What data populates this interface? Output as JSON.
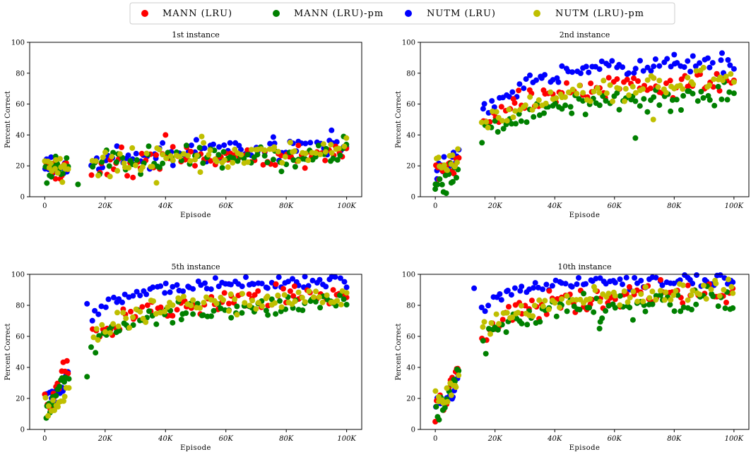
{
  "figure": {
    "legend_placement": "top-center",
    "x_tick_labels": [
      "0",
      "20K",
      "40K",
      "60K",
      "80K",
      "100K"
    ],
    "y_tick_labels": [
      "0",
      "20",
      "40",
      "60",
      "80",
      "100"
    ]
  },
  "chart_data": [
    {
      "type": "scatter",
      "title": "1st instance",
      "xlabel": "Episode",
      "ylabel": "Percent Correct",
      "xlim": [
        -5000,
        105000
      ],
      "ylim": [
        0,
        100
      ],
      "grid": false,
      "legend": "top-center (shared)",
      "series": [
        {
          "name": "MANN (LRU)",
          "color": "#ff0000",
          "trend": {
            "x": [
              0,
              5000,
              10000,
              20000,
              30000,
              40000,
              60000,
              80000,
              100000
            ],
            "y": [
              20,
              19,
              17,
              20,
              23,
              24,
              26,
              27,
              27
            ]
          },
          "jitter": 6,
          "count": 90,
          "outliers": [
            [
              40000,
              40
            ],
            [
              47000,
              32
            ]
          ]
        },
        {
          "name": "MANN (LRU)-pm",
          "color": "#008000",
          "trend": {
            "x": [
              0,
              5000,
              10000,
              20000,
              30000,
              40000,
              60000,
              80000,
              100000
            ],
            "y": [
              20,
              18,
              16,
              20,
              23,
              24,
              26,
              27,
              28
            ]
          },
          "jitter": 6,
          "count": 90,
          "outliers": [
            [
              11000,
              8
            ],
            [
              99000,
              39
            ]
          ]
        },
        {
          "name": "NUTM (LRU)",
          "color": "#0000ff",
          "trend": {
            "x": [
              0,
              5000,
              10000,
              20000,
              30000,
              40000,
              60000,
              80000,
              100000
            ],
            "y": [
              21,
              20,
              20,
              23,
              26,
              28,
              30,
              32,
              33
            ]
          },
          "jitter": 5,
          "count": 90,
          "outliers": [
            [
              95000,
              43
            ]
          ]
        },
        {
          "name": "NUTM (LRU)-pm",
          "color": "#bfbf00",
          "trend": {
            "x": [
              0,
              5000,
              10000,
              20000,
              30000,
              40000,
              60000,
              80000,
              100000
            ],
            "y": [
              21,
              19,
              17,
              21,
              25,
              25,
              27,
              28,
              29
            ]
          },
          "jitter": 6,
          "count": 90,
          "outliers": [
            [
              37000,
              9
            ],
            [
              52000,
              39
            ]
          ]
        }
      ]
    },
    {
      "type": "scatter",
      "title": "2nd instance",
      "xlabel": "Episode",
      "ylabel": "Percent Correct",
      "xlim": [
        -5000,
        105000
      ],
      "ylim": [
        0,
        100
      ],
      "grid": false,
      "legend": "top-center (shared)",
      "series": [
        {
          "name": "MANN (LRU)",
          "color": "#ff0000",
          "trend": {
            "x": [
              0,
              3000,
              6000,
              10000,
              15000,
              20000,
              30000,
              40000,
              50000,
              60000,
              80000,
              100000
            ],
            "y": [
              17,
              18,
              22,
              35,
              46,
              54,
              62,
              66,
              68,
              71,
              73,
              75
            ]
          },
          "jitter": 5,
          "count": 90,
          "outliers": []
        },
        {
          "name": "MANN (LRU)-pm",
          "color": "#008000",
          "trend": {
            "x": [
              0,
              3000,
              6000,
              10000,
              15000,
              20000,
              30000,
              40000,
              50000,
              60000,
              80000,
              100000
            ],
            "y": [
              7,
              10,
              14,
              25,
              35,
              45,
              52,
              56,
              58,
              60,
              63,
              65
            ]
          },
          "jitter": 6,
          "count": 90,
          "outliers": [
            [
              67000,
              38
            ],
            [
              0,
              5
            ]
          ]
        },
        {
          "name": "NUTM (LRU)",
          "color": "#0000ff",
          "trend": {
            "x": [
              0,
              3000,
              6000,
              10000,
              15000,
              20000,
              30000,
              40000,
              50000,
              60000,
              80000,
              100000
            ],
            "y": [
              18,
              19,
              22,
              37,
              52,
              62,
              72,
              78,
              82,
              84,
              85,
              86
            ]
          },
          "jitter": 4,
          "count": 90,
          "outliers": [
            [
              96000,
              93
            ],
            [
              80000,
              92
            ]
          ]
        },
        {
          "name": "NUTM (LRU)-pm",
          "color": "#bfbf00",
          "trend": {
            "x": [
              0,
              3000,
              6000,
              10000,
              15000,
              20000,
              30000,
              40000,
              50000,
              60000,
              80000,
              100000
            ],
            "y": [
              22,
              20,
              22,
              34,
              46,
              53,
              60,
              64,
              67,
              70,
              74,
              77
            ]
          },
          "jitter": 5,
          "count": 90,
          "outliers": [
            [
              73000,
              50
            ]
          ]
        }
      ]
    },
    {
      "type": "scatter",
      "title": "5th instance",
      "xlabel": "Episode",
      "ylabel": "Percent Correct",
      "xlim": [
        -5000,
        105000
      ],
      "ylim": [
        0,
        100
      ],
      "grid": false,
      "legend": "top-center (shared)",
      "series": [
        {
          "name": "MANN (LRU)",
          "color": "#ff0000",
          "trend": {
            "x": [
              0,
              3000,
              6000,
              10000,
              15000,
              20000,
              30000,
              40000,
              60000,
              80000,
              100000
            ],
            "y": [
              18,
              22,
              38,
              47,
              57,
              65,
              74,
              78,
              83,
              86,
              88
            ]
          },
          "jitter": 5,
          "count": 90,
          "outliers": []
        },
        {
          "name": "MANN (LRU)-pm",
          "color": "#008000",
          "trend": {
            "x": [
              0,
              3000,
              6000,
              10000,
              15000,
              20000,
              30000,
              40000,
              60000,
              80000,
              100000
            ],
            "y": [
              11,
              18,
              32,
              40,
              48,
              62,
              70,
              74,
              78,
              80,
              82
            ]
          },
          "jitter": 5,
          "count": 90,
          "outliers": [
            [
              14000,
              34
            ]
          ]
        },
        {
          "name": "NUTM (LRU)",
          "color": "#0000ff",
          "trend": {
            "x": [
              0,
              3000,
              6000,
              10000,
              15000,
              20000,
              30000,
              40000,
              60000,
              80000,
              100000
            ],
            "y": [
              23,
              20,
              25,
              55,
              72,
              80,
              88,
              91,
              94,
              95,
              96
            ]
          },
          "jitter": 3,
          "count": 90,
          "outliers": [
            [
              14000,
              81
            ]
          ]
        },
        {
          "name": "NUTM (LRU)-pm",
          "color": "#bfbf00",
          "trend": {
            "x": [
              0,
              3000,
              6000,
              10000,
              15000,
              20000,
              30000,
              40000,
              60000,
              80000,
              100000
            ],
            "y": [
              16,
              17,
              20,
              45,
              58,
              66,
              75,
              79,
              83,
              86,
              87
            ]
          },
          "jitter": 5,
          "count": 90,
          "outliers": []
        }
      ]
    },
    {
      "type": "scatter",
      "title": "10th instance",
      "xlabel": "Episode",
      "ylabel": "Percent Correct",
      "xlim": [
        -5000,
        105000
      ],
      "ylim": [
        0,
        100
      ],
      "grid": false,
      "legend": "top-center (shared)",
      "series": [
        {
          "name": "MANN (LRU)",
          "color": "#ff0000",
          "trend": {
            "x": [
              0,
              3000,
              6000,
              10000,
              15000,
              20000,
              30000,
              40000,
              60000,
              80000,
              100000
            ],
            "y": [
              12,
              16,
              35,
              50,
              60,
              70,
              78,
              82,
              86,
              88,
              90
            ]
          },
          "jitter": 5,
          "count": 90,
          "outliers": [
            [
              0,
              5
            ]
          ]
        },
        {
          "name": "MANN (LRU)-pm",
          "color": "#008000",
          "trend": {
            "x": [
              0,
              3000,
              6000,
              10000,
              15000,
              20000,
              30000,
              40000,
              60000,
              80000,
              100000
            ],
            "y": [
              10,
              14,
              30,
              45,
              52,
              65,
              72,
              77,
              80,
              82,
              84
            ]
          },
          "jitter": 6,
          "count": 90,
          "outliers": [
            [
              55000,
              65
            ]
          ]
        },
        {
          "name": "NUTM (LRU)",
          "color": "#0000ff",
          "trend": {
            "x": [
              0,
              3000,
              6000,
              10000,
              15000,
              20000,
              30000,
              40000,
              60000,
              80000,
              100000
            ],
            "y": [
              18,
              20,
              22,
              65,
              78,
              85,
              90,
              93,
              95,
              96,
              97
            ]
          },
          "jitter": 3,
          "count": 90,
          "outliers": [
            [
              13000,
              91
            ]
          ]
        },
        {
          "name": "NUTM (LRU)-pm",
          "color": "#bfbf00",
          "trend": {
            "x": [
              0,
              3000,
              6000,
              10000,
              15000,
              20000,
              30000,
              40000,
              60000,
              80000,
              100000
            ],
            "y": [
              19,
              20,
              25,
              50,
              60,
              68,
              76,
              82,
              86,
              88,
              90
            ]
          },
          "jitter": 5,
          "count": 90,
          "outliers": []
        }
      ]
    }
  ]
}
